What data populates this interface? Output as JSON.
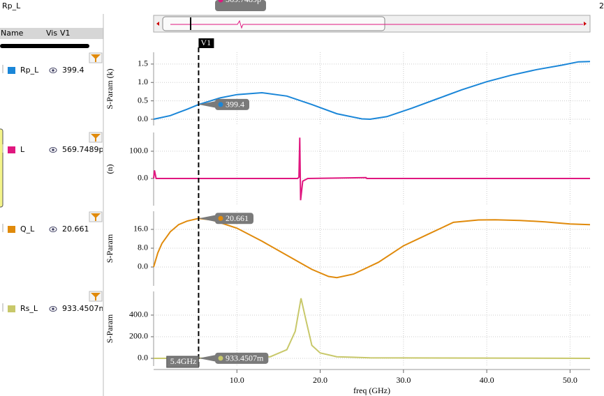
{
  "header": {
    "title": "Rp_L",
    "right": "2"
  },
  "panel": {
    "columns": [
      "Name",
      "Vis",
      "V1"
    ]
  },
  "marker": {
    "name": "V1",
    "x": 5.4,
    "x_label": "5.4GHz",
    "readouts": [
      "399.4",
      "569.7489p",
      "20.661",
      "933.4507m"
    ]
  },
  "chart_data": [
    {
      "type": "line",
      "y_label": "S-Param (k)",
      "ylim": [
        -0.17,
        1.82
      ],
      "yticks": [
        {
          "value": 0,
          "label": "0.0"
        },
        {
          "value": 0.5,
          "label": "0.5"
        },
        {
          "value": 1,
          "label": "1.0"
        },
        {
          "value": 1.5,
          "label": "1.5"
        }
      ],
      "series": [
        {
          "name": "Rp_L",
          "color": "#1a86d8",
          "x": [
            0,
            2,
            4,
            5.4,
            8,
            10,
            13,
            16,
            19,
            22,
            25,
            26,
            28,
            31,
            34,
            37,
            40,
            43,
            46,
            49,
            51,
            52.4
          ],
          "values": [
            0,
            0.1,
            0.27,
            0.4,
            0.58,
            0.67,
            0.72,
            0.63,
            0.4,
            0.15,
            0.01,
            0,
            0.07,
            0.3,
            0.55,
            0.8,
            1.02,
            1.2,
            1.35,
            1.47,
            1.56,
            1.57
          ]
        }
      ]
    },
    {
      "type": "line",
      "y_label": "(n)",
      "ylim": [
        -100,
        169
      ],
      "yticks": [
        {
          "value": 0,
          "label": "0.0"
        },
        {
          "value": 100,
          "label": "100.0"
        }
      ],
      "series": [
        {
          "name": "L",
          "color": "#e0177f",
          "x": [
            0,
            0.1,
            0.3,
            17.3,
            17.45,
            17.55,
            17.65,
            17.9,
            18.5,
            25.5,
            25.6,
            52.4
          ],
          "values": [
            0,
            30,
            0,
            0,
            5,
            150,
            -80,
            -10,
            0,
            3,
            0,
            0
          ]
        }
      ]
    },
    {
      "type": "line",
      "y_label": "S-Param",
      "ylim": [
        -8,
        23.7
      ],
      "yticks": [
        {
          "value": 0,
          "label": "0.0"
        },
        {
          "value": 8,
          "label": "8.0"
        },
        {
          "value": 16,
          "label": "16.0"
        }
      ],
      "series": [
        {
          "name": "Q_L",
          "color": "#e08a0b",
          "x": [
            0,
            0.5,
            1,
            2,
            3,
            4,
            5.4,
            7,
            10,
            13,
            16,
            19,
            21,
            22,
            24,
            27,
            30,
            33,
            36,
            39,
            41,
            44,
            47,
            50,
            52.4
          ],
          "values": [
            0,
            6,
            10,
            15,
            18,
            19.5,
            20.661,
            20,
            16.5,
            11,
            5,
            -1,
            -4,
            -4.5,
            -3,
            2,
            9,
            14,
            19,
            20,
            20.1,
            19.8,
            19.2,
            18.3,
            18
          ]
        }
      ]
    },
    {
      "type": "line",
      "y_label": "S-Param",
      "ylim": [
        -71,
        619
      ],
      "yticks": [
        {
          "value": 0,
          "label": "0.0"
        },
        {
          "value": 200,
          "label": "200.0"
        },
        {
          "value": 400,
          "label": "400.0"
        }
      ],
      "x_label": "freq (GHz)",
      "xlim": [
        0,
        52.4
      ],
      "xticks": [
        {
          "value": 10,
          "label": "10.0"
        },
        {
          "value": 20,
          "label": "20.0"
        },
        {
          "value": 30,
          "label": "30.0"
        },
        {
          "value": 40,
          "label": "40.0"
        },
        {
          "value": 50,
          "label": "50.0"
        }
      ],
      "series": [
        {
          "name": "Rs_L",
          "color": "#c8c86a",
          "x": [
            0,
            5.4,
            10,
            14,
            16,
            17,
            17.7,
            18.3,
            19,
            20,
            22,
            26,
            52.4
          ],
          "values": [
            0,
            0.933,
            3,
            15,
            80,
            250,
            555,
            350,
            120,
            50,
            15,
            5,
            0
          ]
        }
      ]
    }
  ]
}
